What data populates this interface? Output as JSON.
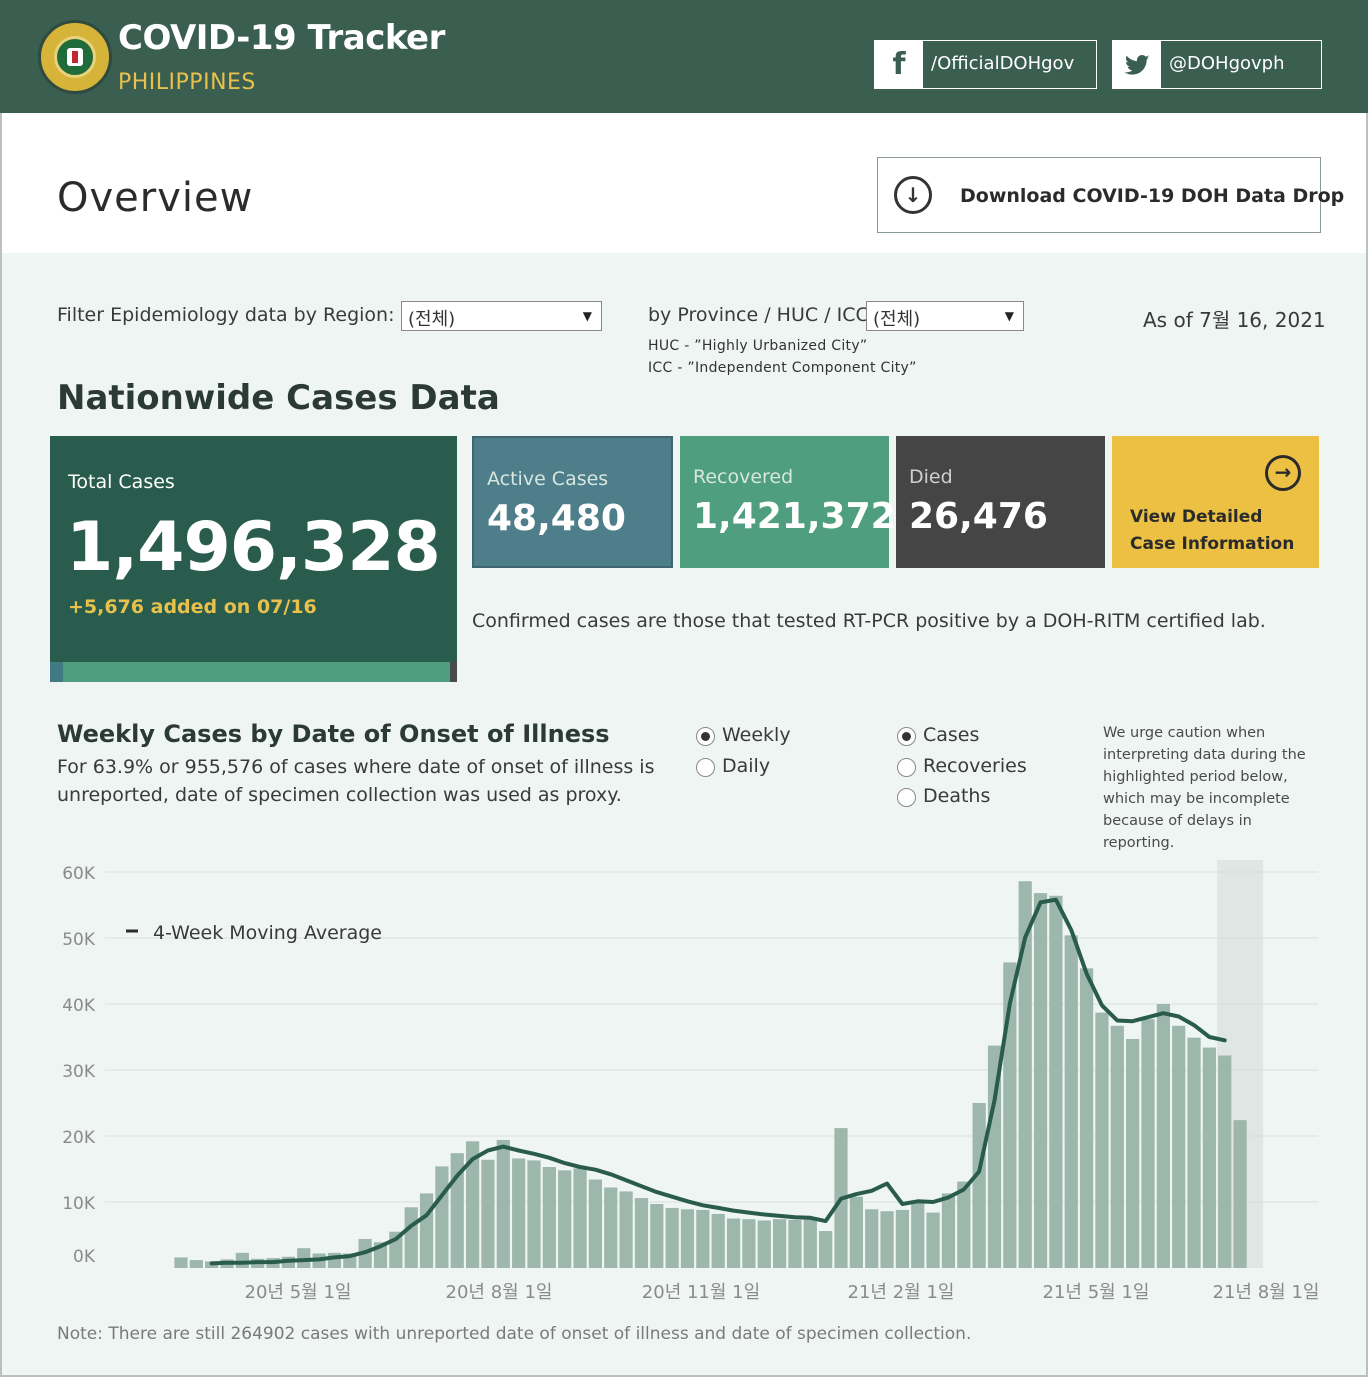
{
  "header": {
    "title": "COVID-19 Tracker",
    "subtitle": "PHILIPPINES",
    "facebook": "/OfficialDOHgov",
    "twitter": "@DOHgovph"
  },
  "overview": {
    "title": "Overview",
    "download_label": "Download COVID-19 DOH Data Drop"
  },
  "filters": {
    "region_label": "Filter Epidemiology data by Region:",
    "region_value": "(전체)",
    "province_label": "by Province / HUC / ICC:",
    "province_value": "(전체)",
    "huc_note": "HUC - ”Highly Urbanized City”",
    "icc_note": "ICC - ”Independent Component City”",
    "as_of": "As of 7월 16, 2021"
  },
  "nationwide": {
    "title": "Nationwide Cases Data",
    "total_label": "Total Cases",
    "total_value": "1,496,328",
    "added": "+5,676 added on 07/16",
    "active_label": "Active Cases",
    "active_value": "48,480",
    "recovered_label": "Recovered",
    "recovered_value": "1,421,372",
    "died_label": "Died",
    "died_value": "26,476",
    "detail_label": "View Detailed Case Information",
    "note": "Confirmed cases are those that tested RT-PCR positive by a DOH-RITM certified lab.",
    "share_active": 0.0324,
    "share_recovered": 0.9499,
    "share_died": 0.0177
  },
  "weekly": {
    "title": "Weekly Cases by Date of Onset of Illness",
    "subtitle": "For 63.9% or 955,576 of cases where date of onset of illness is unreported, date of specimen collection was used as proxy.",
    "period_options": [
      {
        "label": "Weekly",
        "selected": true
      },
      {
        "label": "Daily",
        "selected": false
      }
    ],
    "measure_options": [
      {
        "label": "Cases",
        "selected": true
      },
      {
        "label": "Recoveries",
        "selected": false
      },
      {
        "label": "Deaths",
        "selected": false
      }
    ],
    "caution": "We urge caution when interpreting data during the highlighted period below, which may be incomplete because of delays in reporting.",
    "footnote": "Note: There are still 264902 cases with unreported date of onset of illness and date of specimen collection."
  },
  "chart_data": {
    "type": "bar",
    "y_ticks": [
      "60K",
      "50K",
      "40K",
      "30K",
      "20K",
      "10K",
      "0K"
    ],
    "x_ticks": [
      "20년 5월 1일",
      "20년 8월 1일",
      "20년 11월 1일",
      "21년 2월 1일",
      "21년 5월 1일",
      "21년 8월 1일"
    ],
    "legend": "4-Week Moving Average",
    "ylim": [
      0,
      60000
    ],
    "grid": true,
    "colors": {
      "bar": "#9db7ac",
      "line": "#2a5c4e",
      "highlight": "#dfe6e3"
    },
    "values": [
      0,
      1600,
      1200,
      1000,
      1300,
      2300,
      1400,
      1500,
      1700,
      3000,
      2200,
      2300,
      2200,
      4400,
      3900,
      5500,
      9200,
      11300,
      15400,
      17400,
      19200,
      16400,
      19400,
      16600,
      16300,
      15300,
      14800,
      15100,
      13400,
      12200,
      11600,
      10600,
      9700,
      9100,
      8900,
      8800,
      8200,
      7500,
      7400,
      7200,
      7400,
      7300,
      7700,
      5600,
      21200,
      10800,
      8900,
      8600,
      8800,
      10200,
      8400,
      11300,
      13100,
      25000,
      33700,
      46300,
      58600,
      56800,
      56400,
      50400,
      45400,
      38700,
      36700,
      34700,
      37700,
      40000,
      36700,
      34900,
      33400,
      32200,
      22400
    ],
    "moving_average": [
      null,
      null,
      null,
      700,
      800,
      800,
      900,
      900,
      1100,
      1200,
      1300,
      1600,
      1800,
      2400,
      3300,
      4400,
      6400,
      8000,
      11000,
      14000,
      16500,
      17800,
      18400,
      17800,
      17300,
      16700,
      15900,
      15300,
      14900,
      14200,
      13300,
      12400,
      11500,
      10800,
      10100,
      9500,
      9100,
      8700,
      8400,
      8100,
      7900,
      7700,
      7600,
      7100,
      10500,
      11200,
      11700,
      12800,
      9700,
      10100,
      10000,
      10700,
      11900,
      14600,
      25400,
      40100,
      50100,
      55400,
      55800,
      51200,
      44600,
      39800,
      37500,
      37400,
      38000,
      38600,
      38100,
      36800,
      35000,
      34500,
      null
    ],
    "highlight_from_index": 69
  }
}
